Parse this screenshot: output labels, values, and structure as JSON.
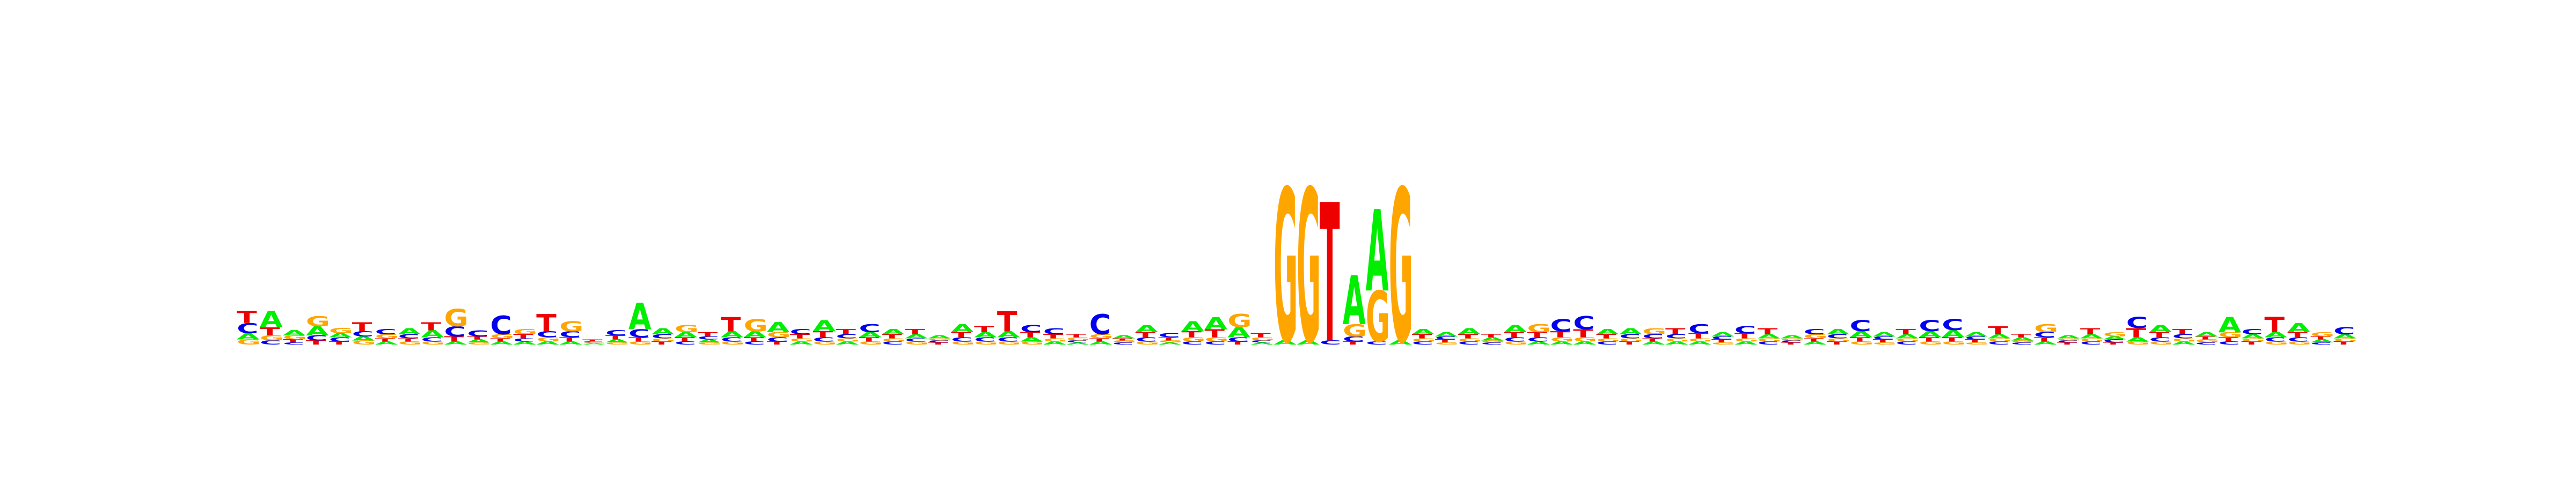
{
  "motif_logo": {
    "colors": {
      "A": "#00ee00",
      "C": "#0000ee",
      "G": "#ffa500",
      "T": "#ee0000"
    },
    "info_max_bits": 2.0,
    "positions": [
      {
        "heights": {
          "T": 0.12,
          "C": 0.1,
          "A": 0.06,
          "G": 0.05
        }
      },
      {
        "heights": {
          "A": 0.16,
          "T": 0.08,
          "G": 0.05,
          "C": 0.04
        }
      },
      {
        "heights": {
          "A": 0.05,
          "G": 0.04,
          "T": 0.03,
          "C": 0.02
        }
      },
      {
        "heights": {
          "G": 0.1,
          "A": 0.09,
          "C": 0.05,
          "T": 0.04
        }
      },
      {
        "heights": {
          "G": 0.05,
          "C": 0.04,
          "A": 0.04,
          "T": 0.03
        }
      },
      {
        "heights": {
          "T": 0.09,
          "C": 0.05,
          "G": 0.04,
          "A": 0.04
        }
      },
      {
        "heights": {
          "C": 0.05,
          "G": 0.04,
          "A": 0.03,
          "T": 0.03
        }
      },
      {
        "heights": {
          "A": 0.06,
          "C": 0.04,
          "G": 0.03,
          "T": 0.03
        }
      },
      {
        "heights": {
          "T": 0.08,
          "A": 0.07,
          "C": 0.04,
          "G": 0.03
        }
      },
      {
        "heights": {
          "G": 0.17,
          "C": 0.1,
          "T": 0.05,
          "A": 0.03
        }
      },
      {
        "heights": {
          "C": 0.06,
          "A": 0.03,
          "T": 0.03,
          "G": 0.02
        }
      },
      {
        "heights": {
          "C": 0.18,
          "G": 0.04,
          "A": 0.03,
          "T": 0.03
        }
      },
      {
        "heights": {
          "G": 0.05,
          "T": 0.04,
          "A": 0.03,
          "C": 0.03
        }
      },
      {
        "heights": {
          "T": 0.17,
          "C": 0.06,
          "G": 0.04,
          "A": 0.03
        }
      },
      {
        "heights": {
          "G": 0.1,
          "C": 0.06,
          "T": 0.04,
          "A": 0.03
        }
      },
      {
        "heights": {
          "T": 0.02,
          "A": 0.01,
          "G": 0.01,
          "C": 0.01
        }
      },
      {
        "heights": {
          "C": 0.05,
          "T": 0.04,
          "A": 0.03,
          "G": 0.02
        }
      },
      {
        "heights": {
          "A": 0.26,
          "C": 0.08,
          "T": 0.04,
          "G": 0.03
        }
      },
      {
        "heights": {
          "A": 0.06,
          "C": 0.04,
          "T": 0.03,
          "G": 0.03
        }
      },
      {
        "heights": {
          "G": 0.07,
          "A": 0.05,
          "T": 0.04,
          "C": 0.03
        }
      },
      {
        "heights": {
          "T": 0.04,
          "A": 0.03,
          "C": 0.03,
          "G": 0.02
        }
      },
      {
        "heights": {
          "T": 0.14,
          "A": 0.06,
          "C": 0.04,
          "G": 0.03
        }
      },
      {
        "heights": {
          "G": 0.12,
          "A": 0.06,
          "T": 0.04,
          "C": 0.03
        }
      },
      {
        "heights": {
          "A": 0.1,
          "G": 0.05,
          "C": 0.04,
          "T": 0.03
        }
      },
      {
        "heights": {
          "C": 0.05,
          "T": 0.04,
          "A": 0.03,
          "G": 0.03
        }
      },
      {
        "heights": {
          "A": 0.11,
          "T": 0.06,
          "C": 0.04,
          "G": 0.03
        }
      },
      {
        "heights": {
          "T": 0.05,
          "C": 0.04,
          "A": 0.03,
          "G": 0.03
        }
      },
      {
        "heights": {
          "C": 0.08,
          "A": 0.05,
          "T": 0.04,
          "G": 0.03
        }
      },
      {
        "heights": {
          "A": 0.05,
          "T": 0.04,
          "C": 0.03,
          "G": 0.03
        }
      },
      {
        "heights": {
          "T": 0.05,
          "A": 0.04,
          "G": 0.03,
          "C": 0.03
        }
      },
      {
        "heights": {
          "A": 0.03,
          "T": 0.02,
          "C": 0.02,
          "G": 0.02
        }
      },
      {
        "heights": {
          "A": 0.08,
          "T": 0.05,
          "C": 0.04,
          "G": 0.03
        }
      },
      {
        "heights": {
          "T": 0.06,
          "A": 0.05,
          "C": 0.04,
          "G": 0.03
        }
      },
      {
        "heights": {
          "T": 0.2,
          "A": 0.06,
          "C": 0.04,
          "G": 0.03
        }
      },
      {
        "heights": {
          "C": 0.07,
          "T": 0.05,
          "A": 0.04,
          "G": 0.03
        }
      },
      {
        "heights": {
          "C": 0.06,
          "T": 0.04,
          "A": 0.03,
          "G": 0.03
        }
      },
      {
        "heights": {
          "G": 0.03,
          "T": 0.03,
          "A": 0.02,
          "C": 0.02
        }
      },
      {
        "heights": {
          "C": 0.2,
          "G": 0.04,
          "A": 0.03,
          "T": 0.03
        }
      },
      {
        "heights": {
          "A": 0.03,
          "C": 0.02,
          "G": 0.02,
          "T": 0.02
        }
      },
      {
        "heights": {
          "A": 0.07,
          "T": 0.05,
          "C": 0.04,
          "G": 0.03
        }
      },
      {
        "heights": {
          "C": 0.04,
          "T": 0.03,
          "A": 0.02,
          "G": 0.02
        }
      },
      {
        "heights": {
          "A": 0.1,
          "T": 0.06,
          "G": 0.04,
          "C": 0.03
        }
      },
      {
        "heights": {
          "A": 0.12,
          "T": 0.08,
          "G": 0.04,
          "C": 0.03
        }
      },
      {
        "heights": {
          "G": 0.13,
          "A": 0.1,
          "C": 0.04,
          "T": 0.03
        }
      },
      {
        "heights": {
          "T": 0.04,
          "G": 0.03,
          "A": 0.02,
          "C": 0.02
        }
      },
      {
        "heights": {
          "G": 1.5,
          "A": 0.04
        }
      },
      {
        "heights": {
          "G": 1.5,
          "A": 0.04
        }
      },
      {
        "heights": {
          "T": 1.36,
          "C": 0.04
        }
      },
      {
        "heights": {
          "A": 0.48,
          "G": 0.12,
          "C": 0.05,
          "T": 0.03
        }
      },
      {
        "heights": {
          "G": 0.5,
          "A": 0.8,
          "C": 0.03
        }
      },
      {
        "heights": {
          "G": 1.5,
          "A": 0.04
        }
      },
      {
        "heights": {
          "A": 0.05,
          "T": 0.04,
          "C": 0.03,
          "G": 0.03
        }
      },
      {
        "heights": {
          "A": 0.04,
          "T": 0.03,
          "C": 0.03,
          "G": 0.02
        }
      },
      {
        "heights": {
          "A": 0.06,
          "T": 0.04,
          "C": 0.03,
          "G": 0.03
        }
      },
      {
        "heights": {
          "A": 0.03,
          "T": 0.03,
          "C": 0.02,
          "G": 0.02
        }
      },
      {
        "heights": {
          "A": 0.07,
          "T": 0.05,
          "C": 0.04,
          "G": 0.03
        }
      },
      {
        "heights": {
          "G": 0.08,
          "T": 0.05,
          "C": 0.04,
          "A": 0.03
        }
      },
      {
        "heights": {
          "C": 0.12,
          "T": 0.06,
          "G": 0.04,
          "A": 0.03
        }
      },
      {
        "heights": {
          "C": 0.13,
          "T": 0.08,
          "G": 0.04,
          "A": 0.03
        }
      },
      {
        "heights": {
          "A": 0.05,
          "T": 0.04,
          "C": 0.03,
          "G": 0.03
        }
      },
      {
        "heights": {
          "A": 0.06,
          "C": 0.04,
          "T": 0.03,
          "G": 0.03
        }
      },
      {
        "heights": {
          "G": 0.06,
          "C": 0.04,
          "A": 0.03,
          "T": 0.03
        }
      },
      {
        "heights": {
          "T": 0.06,
          "C": 0.04,
          "A": 0.03,
          "G": 0.03
        }
      },
      {
        "heights": {
          "C": 0.09,
          "T": 0.05,
          "A": 0.03,
          "G": 0.03
        }
      },
      {
        "heights": {
          "A": 0.04,
          "T": 0.03,
          "C": 0.03,
          "G": 0.02
        }
      },
      {
        "heights": {
          "C": 0.07,
          "T": 0.05,
          "A": 0.03,
          "G": 0.03
        }
      },
      {
        "heights": {
          "T": 0.06,
          "A": 0.04,
          "C": 0.03,
          "G": 0.03
        }
      },
      {
        "heights": {
          "A": 0.03,
          "T": 0.02,
          "C": 0.02,
          "G": 0.02
        }
      },
      {
        "heights": {
          "C": 0.05,
          "G": 0.04,
          "A": 0.03,
          "T": 0.03
        }
      },
      {
        "heights": {
          "A": 0.05,
          "C": 0.04,
          "T": 0.03,
          "G": 0.03
        }
      },
      {
        "heights": {
          "C": 0.11,
          "A": 0.06,
          "T": 0.04,
          "G": 0.03
        }
      },
      {
        "heights": {
          "A": 0.04,
          "T": 0.03,
          "C": 0.03,
          "G": 0.02
        }
      },
      {
        "heights": {
          "T": 0.05,
          "A": 0.04,
          "C": 0.03,
          "G": 0.03
        }
      },
      {
        "heights": {
          "C": 0.11,
          "A": 0.06,
          "T": 0.04,
          "G": 0.03
        }
      },
      {
        "heights": {
          "C": 0.11,
          "A": 0.07,
          "T": 0.04,
          "G": 0.03
        }
      },
      {
        "heights": {
          "A": 0.04,
          "T": 0.03,
          "C": 0.03,
          "G": 0.02
        }
      },
      {
        "heights": {
          "T": 0.08,
          "A": 0.04,
          "C": 0.03,
          "G": 0.03
        }
      },
      {
        "heights": {
          "A": 0.03,
          "T": 0.03,
          "C": 0.02,
          "G": 0.02
        }
      },
      {
        "heights": {
          "G": 0.08,
          "C": 0.05,
          "T": 0.04,
          "A": 0.03
        }
      },
      {
        "heights": {
          "A": 0.03,
          "T": 0.02,
          "C": 0.02,
          "G": 0.02
        }
      },
      {
        "heights": {
          "T": 0.06,
          "A": 0.04,
          "C": 0.03,
          "G": 0.03
        }
      },
      {
        "heights": {
          "G": 0.04,
          "C": 0.03,
          "A": 0.03,
          "T": 0.02
        }
      },
      {
        "heights": {
          "T": 0.09,
          "C": 0.11,
          "A": 0.04,
          "G": 0.03
        }
      },
      {
        "heights": {
          "A": 0.07,
          "T": 0.05,
          "C": 0.04,
          "G": 0.03
        }
      },
      {
        "heights": {
          "T": 0.05,
          "C": 0.04,
          "A": 0.03,
          "G": 0.03
        }
      },
      {
        "heights": {
          "A": 0.04,
          "G": 0.03,
          "T": 0.03,
          "C": 0.02
        }
      },
      {
        "heights": {
          "A": 0.15,
          "G": 0.05,
          "T": 0.04,
          "C": 0.03
        }
      },
      {
        "heights": {
          "C": 0.05,
          "A": 0.04,
          "T": 0.03,
          "G": 0.03
        }
      },
      {
        "heights": {
          "T": 0.15,
          "A": 0.05,
          "C": 0.04,
          "G": 0.03
        }
      },
      {
        "heights": {
          "A": 0.09,
          "T": 0.05,
          "C": 0.04,
          "G": 0.03
        }
      },
      {
        "heights": {
          "G": 0.04,
          "A": 0.03,
          "T": 0.03,
          "C": 0.02
        }
      },
      {
        "heights": {
          "C": 0.07,
          "A": 0.04,
          "T": 0.03,
          "G": 0.03
        }
      }
    ]
  }
}
